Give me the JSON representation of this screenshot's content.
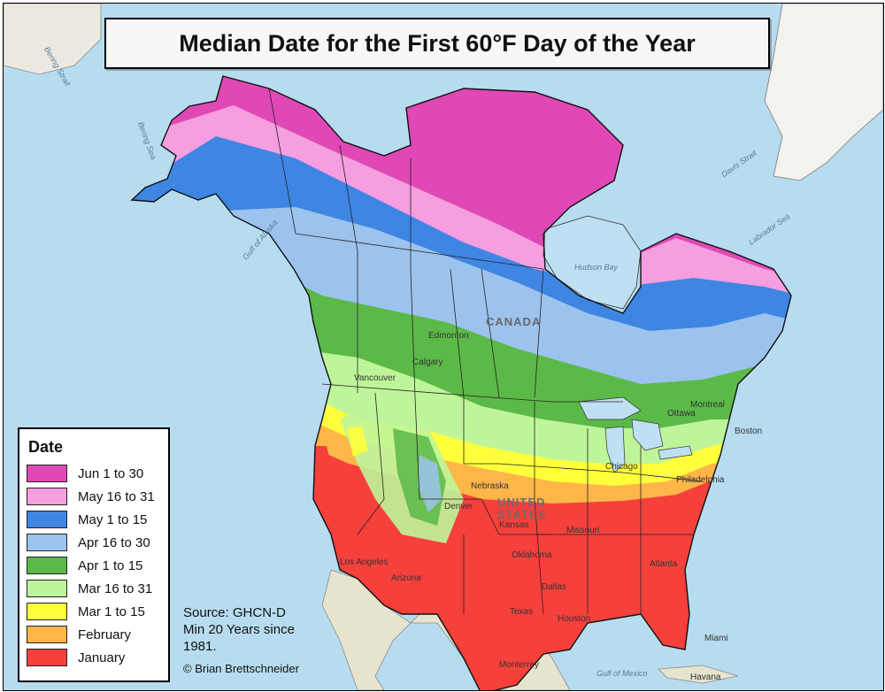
{
  "title": "Median Date for the First 60°F Day of the Year",
  "legend": {
    "heading": "Date",
    "items": [
      {
        "label": "Jun 1 to 30",
        "color": "#e049b5"
      },
      {
        "label": "May 16 to 31",
        "color": "#f59ee0"
      },
      {
        "label": "May 1 to 15",
        "color": "#3f86e3"
      },
      {
        "label": "Apr 16 to 30",
        "color": "#9cc3ee"
      },
      {
        "label": "Apr 1 to 15",
        "color": "#5bb948"
      },
      {
        "label": "Mar 16 to 31",
        "color": "#bff59a"
      },
      {
        "label": "Mar 1 to 15",
        "color": "#ffff3c"
      },
      {
        "label": "February",
        "color": "#ffb648"
      },
      {
        "label": "January",
        "color": "#f5403c"
      }
    ]
  },
  "source": {
    "line1": "Source: GHCN-D",
    "line2": "Min 20 Years since",
    "line3": "1981."
  },
  "credit": "© Brian Brettschneider",
  "labels": {
    "countries": {
      "canada": "CANADA",
      "united": "UNITED",
      "states": "STATES"
    },
    "cities": {
      "edmonton": "Edmonton",
      "calgary": "Calgary",
      "vancouver": "Vancouver",
      "denver": "Denver",
      "los_angeles": "Los Angeles",
      "dallas": "Dallas",
      "houston": "Houston",
      "atlanta": "Atlanta",
      "chicago": "Chicago",
      "philadelphia": "Philadelphia",
      "boston": "Boston",
      "montreal": "Montreal",
      "miami": "Miami",
      "havana": "Havana",
      "monterrey": "Monterrey",
      "ottawa": "Ottawa"
    },
    "regions": {
      "nebraska": "Nebraska",
      "kansas": "Kansas",
      "oklahoma": "Oklahoma",
      "texas": "Texas",
      "arizona": "Arizona",
      "missouri": "Missouri"
    },
    "waters": {
      "bering_sea": "Bering Sea",
      "gulf_of_alaska": "Gulf of Alaska",
      "hudson_bay": "Hudson Bay",
      "labrador_sea": "Labrador Sea",
      "davis_strait": "Davis Strait",
      "gulf_of_mexico": "Gulf of Mexico",
      "bering_strait": "Bering Strait"
    }
  },
  "colors": {
    "ocean": "#bfe0f2",
    "land_outside": "#e6e3cf",
    "greenland": "#f2f2ee"
  }
}
